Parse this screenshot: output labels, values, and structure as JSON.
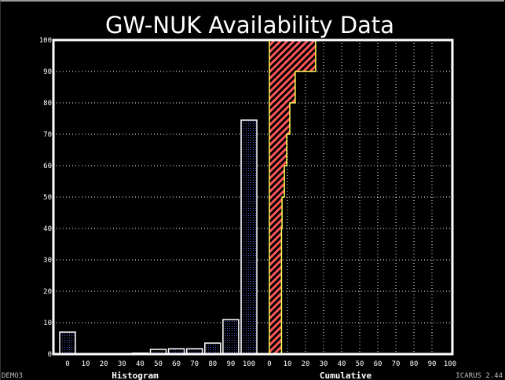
{
  "footer": {
    "left": "DEMO3",
    "right": "ICARUS 2.44"
  },
  "colors": {
    "histogram_fill": "#5555cc",
    "cumulative_fill": "#ff5555",
    "cumulative_edge": "#ffff55",
    "axis": "#ffffff"
  },
  "chart_data": [
    {
      "type": "bar",
      "title": "GW-NUK Availability Data",
      "xlabel": "Histogram",
      "ylabel": "",
      "ylim": [
        0,
        100
      ],
      "yticks": [
        "0",
        "10",
        "20",
        "30",
        "40",
        "50",
        "60",
        "70",
        "80",
        "90",
        "100"
      ],
      "categories": [
        "0",
        "10",
        "20",
        "30",
        "40",
        "50",
        "60",
        "70",
        "80",
        "90",
        "100"
      ],
      "values": [
        7,
        0,
        0,
        0,
        0.3,
        1.5,
        1.7,
        1.7,
        3.5,
        11,
        74.5
      ],
      "grid": true
    },
    {
      "type": "area",
      "xlabel": "Cumulative",
      "xlim": [
        0,
        100
      ],
      "ylim": [
        0,
        100
      ],
      "xticks": [
        "0",
        "10",
        "20",
        "30",
        "40",
        "50",
        "60",
        "70",
        "80",
        "90",
        "100"
      ],
      "steps": [
        {
          "y_from": 0,
          "y_to": 40,
          "x": 6.7
        },
        {
          "y_from": 40,
          "y_to": 50,
          "x": 7
        },
        {
          "y_from": 50,
          "y_to": 60,
          "x": 8.3
        },
        {
          "y_from": 60,
          "y_to": 70,
          "x": 9.6
        },
        {
          "y_from": 70,
          "y_to": 80,
          "x": 11.3
        },
        {
          "y_from": 80,
          "y_to": 90,
          "x": 14.3
        },
        {
          "y_from": 90,
          "y_to": 100,
          "x": 25.6
        }
      ],
      "grid": true
    }
  ]
}
